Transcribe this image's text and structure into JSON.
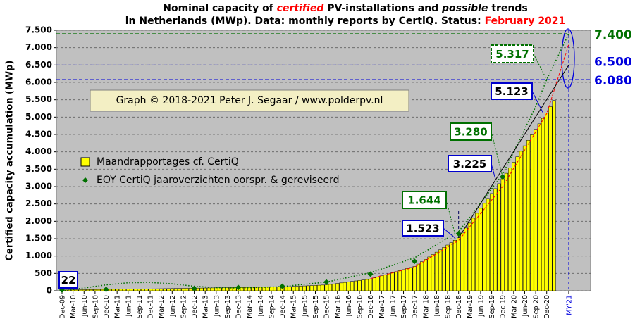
{
  "chart_data": {
    "type": "bar",
    "title": [
      [
        {
          "text": "Nominal capacity of "
        },
        {
          "text": "certified",
          "color": "#ff0000",
          "italic": true
        },
        {
          "text": " PV-installations and "
        },
        {
          "text": "possible",
          "italic": true
        },
        {
          "text": " trends"
        }
      ],
      [
        {
          "text": "in Netherlands (MWp). Data: monthly reports by CertiQ. Status: "
        },
        {
          "text": "February 2021",
          "color": "#ff0000"
        }
      ]
    ],
    "y_label": "Certified capacity accumulation (MWp)",
    "copyright": "Graph © 2018-2021 Peter J. Segaar / www.polderpv.nl",
    "ylim": [
      0,
      7500
    ],
    "yticks": [
      0,
      500,
      {
        "value": 1000,
        "label": "1.000"
      },
      {
        "value": 1500,
        "label": "1.500"
      },
      {
        "value": 2000,
        "label": "2.000"
      },
      {
        "value": 2500,
        "label": "2.500"
      },
      {
        "value": 3000,
        "label": "3.000"
      },
      {
        "value": 3500,
        "label": "3.500"
      },
      {
        "value": 4000,
        "label": "4.000"
      },
      {
        "value": 4500,
        "label": "4.500"
      },
      {
        "value": 5000,
        "label": "5.000"
      },
      {
        "value": 5500,
        "label": "5.500"
      },
      {
        "value": 6000,
        "label": "6.000"
      },
      {
        "value": 6500,
        "label": "6.500"
      },
      {
        "value": 7000,
        "label": "7.000"
      },
      {
        "value": 7500,
        "label": "7.500"
      }
    ],
    "grid": true,
    "categories": [
      "Dec-09",
      null,
      null,
      "Mar-10",
      null,
      null,
      "Jun-10",
      null,
      null,
      "Sep-10",
      null,
      null,
      "Dec-10",
      null,
      null,
      "Mar-11",
      null,
      null,
      "Jun-11",
      null,
      null,
      "Sep-11",
      null,
      null,
      "Dec-11",
      null,
      null,
      "Mar-12",
      null,
      null,
      "Jun-12",
      null,
      null,
      "Sep-12",
      null,
      null,
      "Dec-12",
      null,
      null,
      "Mar-13",
      null,
      null,
      "Jun-13",
      null,
      null,
      "Sep-13",
      null,
      null,
      "Dec-13",
      null,
      null,
      "Mar-14",
      null,
      null,
      "Jun-14",
      null,
      null,
      "Sep-14",
      null,
      null,
      "Dec-14",
      null,
      null,
      "Mar-15",
      null,
      null,
      "Jun-15",
      null,
      null,
      "Sep-15",
      null,
      null,
      "Dec-15",
      null,
      null,
      "Mar-16",
      null,
      null,
      "Jun-16",
      null,
      null,
      "Sep-16",
      null,
      null,
      "Dec-16",
      null,
      null,
      "Mar-17",
      null,
      null,
      "Jun-17",
      null,
      null,
      "Sep-17",
      null,
      null,
      "Dec-17",
      null,
      null,
      "Mar-18",
      null,
      null,
      "Jun-18",
      null,
      null,
      "Sep-18",
      null,
      null,
      "Dec-18",
      null,
      null,
      "Mar-19",
      null,
      null,
      "Jun-19",
      null,
      null,
      "Sep-19",
      null,
      null,
      "Dec-19",
      null,
      null,
      "Mar-20",
      null,
      null,
      "Jun-20",
      null,
      null,
      "Sep-20",
      null,
      null,
      "Dec-20",
      null,
      null,
      null,
      null,
      null,
      "MY'21"
    ],
    "series": [
      {
        "name": "Maandrapportages cf. CertiQ",
        "type": "bar",
        "color": "#ffff00",
        "values": [
          22,
          24,
          25,
          27,
          28,
          30,
          31,
          33,
          34,
          36,
          37,
          39,
          40,
          41,
          43,
          44,
          45,
          46,
          48,
          49,
          50,
          51,
          53,
          54,
          55,
          57,
          58,
          60,
          62,
          63,
          65,
          67,
          68,
          70,
          72,
          73,
          75,
          77,
          78,
          80,
          82,
          83,
          85,
          87,
          88,
          90,
          92,
          93,
          95,
          96,
          98,
          99,
          100,
          101,
          103,
          104,
          105,
          106,
          108,
          109,
          110,
          115,
          120,
          125,
          130,
          135,
          140,
          145,
          150,
          155,
          160,
          165,
          170,
          184,
          198,
          212,
          226,
          240,
          255,
          269,
          283,
          297,
          311,
          325,
          340,
          370,
          400,
          430,
          460,
          490,
          520,
          550,
          580,
          610,
          640,
          670,
          700,
          769,
          837,
          906,
          974,
          1043,
          1112,
          1180,
          1249,
          1317,
          1386,
          1454,
          1523,
          1665,
          1807,
          1948,
          2090,
          2232,
          2374,
          2516,
          2658,
          2799,
          2941,
          3083,
          3225,
          3383,
          3541,
          3700,
          3858,
          4016,
          4174,
          4332,
          4490,
          4649,
          4807,
          4965,
          5123,
          5300,
          5480,
          null,
          null,
          null,
          null
        ]
      },
      {
        "name": "EOY CertiQ jaaroverzichten oorspr. & gereviseerd",
        "type": "scatter",
        "color": "#007000",
        "values": [
          22,
          null,
          null,
          null,
          null,
          null,
          null,
          null,
          null,
          null,
          null,
          null,
          40,
          null,
          null,
          null,
          null,
          null,
          null,
          null,
          null,
          null,
          null,
          null,
          null,
          null,
          null,
          null,
          null,
          null,
          null,
          null,
          null,
          null,
          null,
          null,
          65,
          null,
          null,
          null,
          null,
          null,
          null,
          null,
          null,
          null,
          null,
          null,
          95,
          null,
          null,
          null,
          null,
          null,
          null,
          null,
          null,
          null,
          null,
          null,
          130,
          null,
          null,
          null,
          null,
          null,
          null,
          null,
          null,
          null,
          null,
          null,
          250,
          null,
          null,
          null,
          null,
          null,
          null,
          null,
          null,
          null,
          null,
          null,
          480,
          null,
          null,
          null,
          null,
          null,
          null,
          null,
          null,
          null,
          null,
          null,
          850,
          null,
          null,
          null,
          null,
          null,
          null,
          null,
          null,
          null,
          null,
          null,
          1644,
          null,
          null,
          null,
          null,
          null,
          null,
          null,
          null,
          null,
          null,
          null,
          3280,
          null,
          null,
          null,
          null,
          null,
          null,
          null,
          null,
          null,
          null,
          null,
          null,
          null,
          null,
          null,
          null,
          null,
          null
        ]
      }
    ],
    "trends": [
      {
        "color": "#007000",
        "style": "dotted",
        "categories": [
          "Dec-09",
          "Jun-10",
          "Dec-10",
          "Jun-11",
          "Dec-11",
          "Jun-12",
          "Dec-12",
          "Jun-13",
          "Dec-13",
          "Dec-14",
          "Dec-15",
          "Dec-16",
          "Dec-17",
          "Dec-18",
          "Dec-19",
          "Sep-20",
          "Dec-20",
          "MY'21"
        ],
        "values": [
          0,
          80,
          170,
          230,
          240,
          200,
          130,
          90,
          80,
          120,
          250,
          520,
          950,
          1700,
          3350,
          5300,
          6080,
          7400
        ]
      },
      {
        "color": "#ff0000",
        "style": "dashed",
        "categories": [
          "Dec-16",
          "Dec-17",
          "Dec-18",
          "Dec-19",
          "Dec-20",
          "MY'21"
        ],
        "values": [
          350,
          680,
          1450,
          3000,
          5100,
          7100
        ]
      },
      {
        "color": "#000000",
        "style": "solid",
        "categories": [
          "Dec-18",
          "MY'21"
        ],
        "values": [
          1523,
          6500
        ]
      }
    ],
    "reference_lines": [
      {
        "value": 7400,
        "label": "7.400",
        "color": "#007000"
      },
      {
        "value": 6500,
        "label": "6.500",
        "color": "#0000dd"
      },
      {
        "value": 6080,
        "label": "6.080",
        "color": "#0000dd"
      }
    ],
    "annotations": [
      {
        "label": "22",
        "value": 22,
        "color": "#0000cc"
      },
      {
        "label": "1.523",
        "value": 1523,
        "color": "#0000cc"
      },
      {
        "label": "1.644",
        "value": 1644,
        "color": "#007000"
      },
      {
        "label": "3.225",
        "value": 3225,
        "color": "#0000cc"
      },
      {
        "label": "3.280",
        "value": 3280,
        "color": "#007000"
      },
      {
        "label": "5.123",
        "value": 5123,
        "color": "#0000cc"
      },
      {
        "label": "5.317",
        "value": 5317,
        "color": "#007000"
      }
    ]
  }
}
